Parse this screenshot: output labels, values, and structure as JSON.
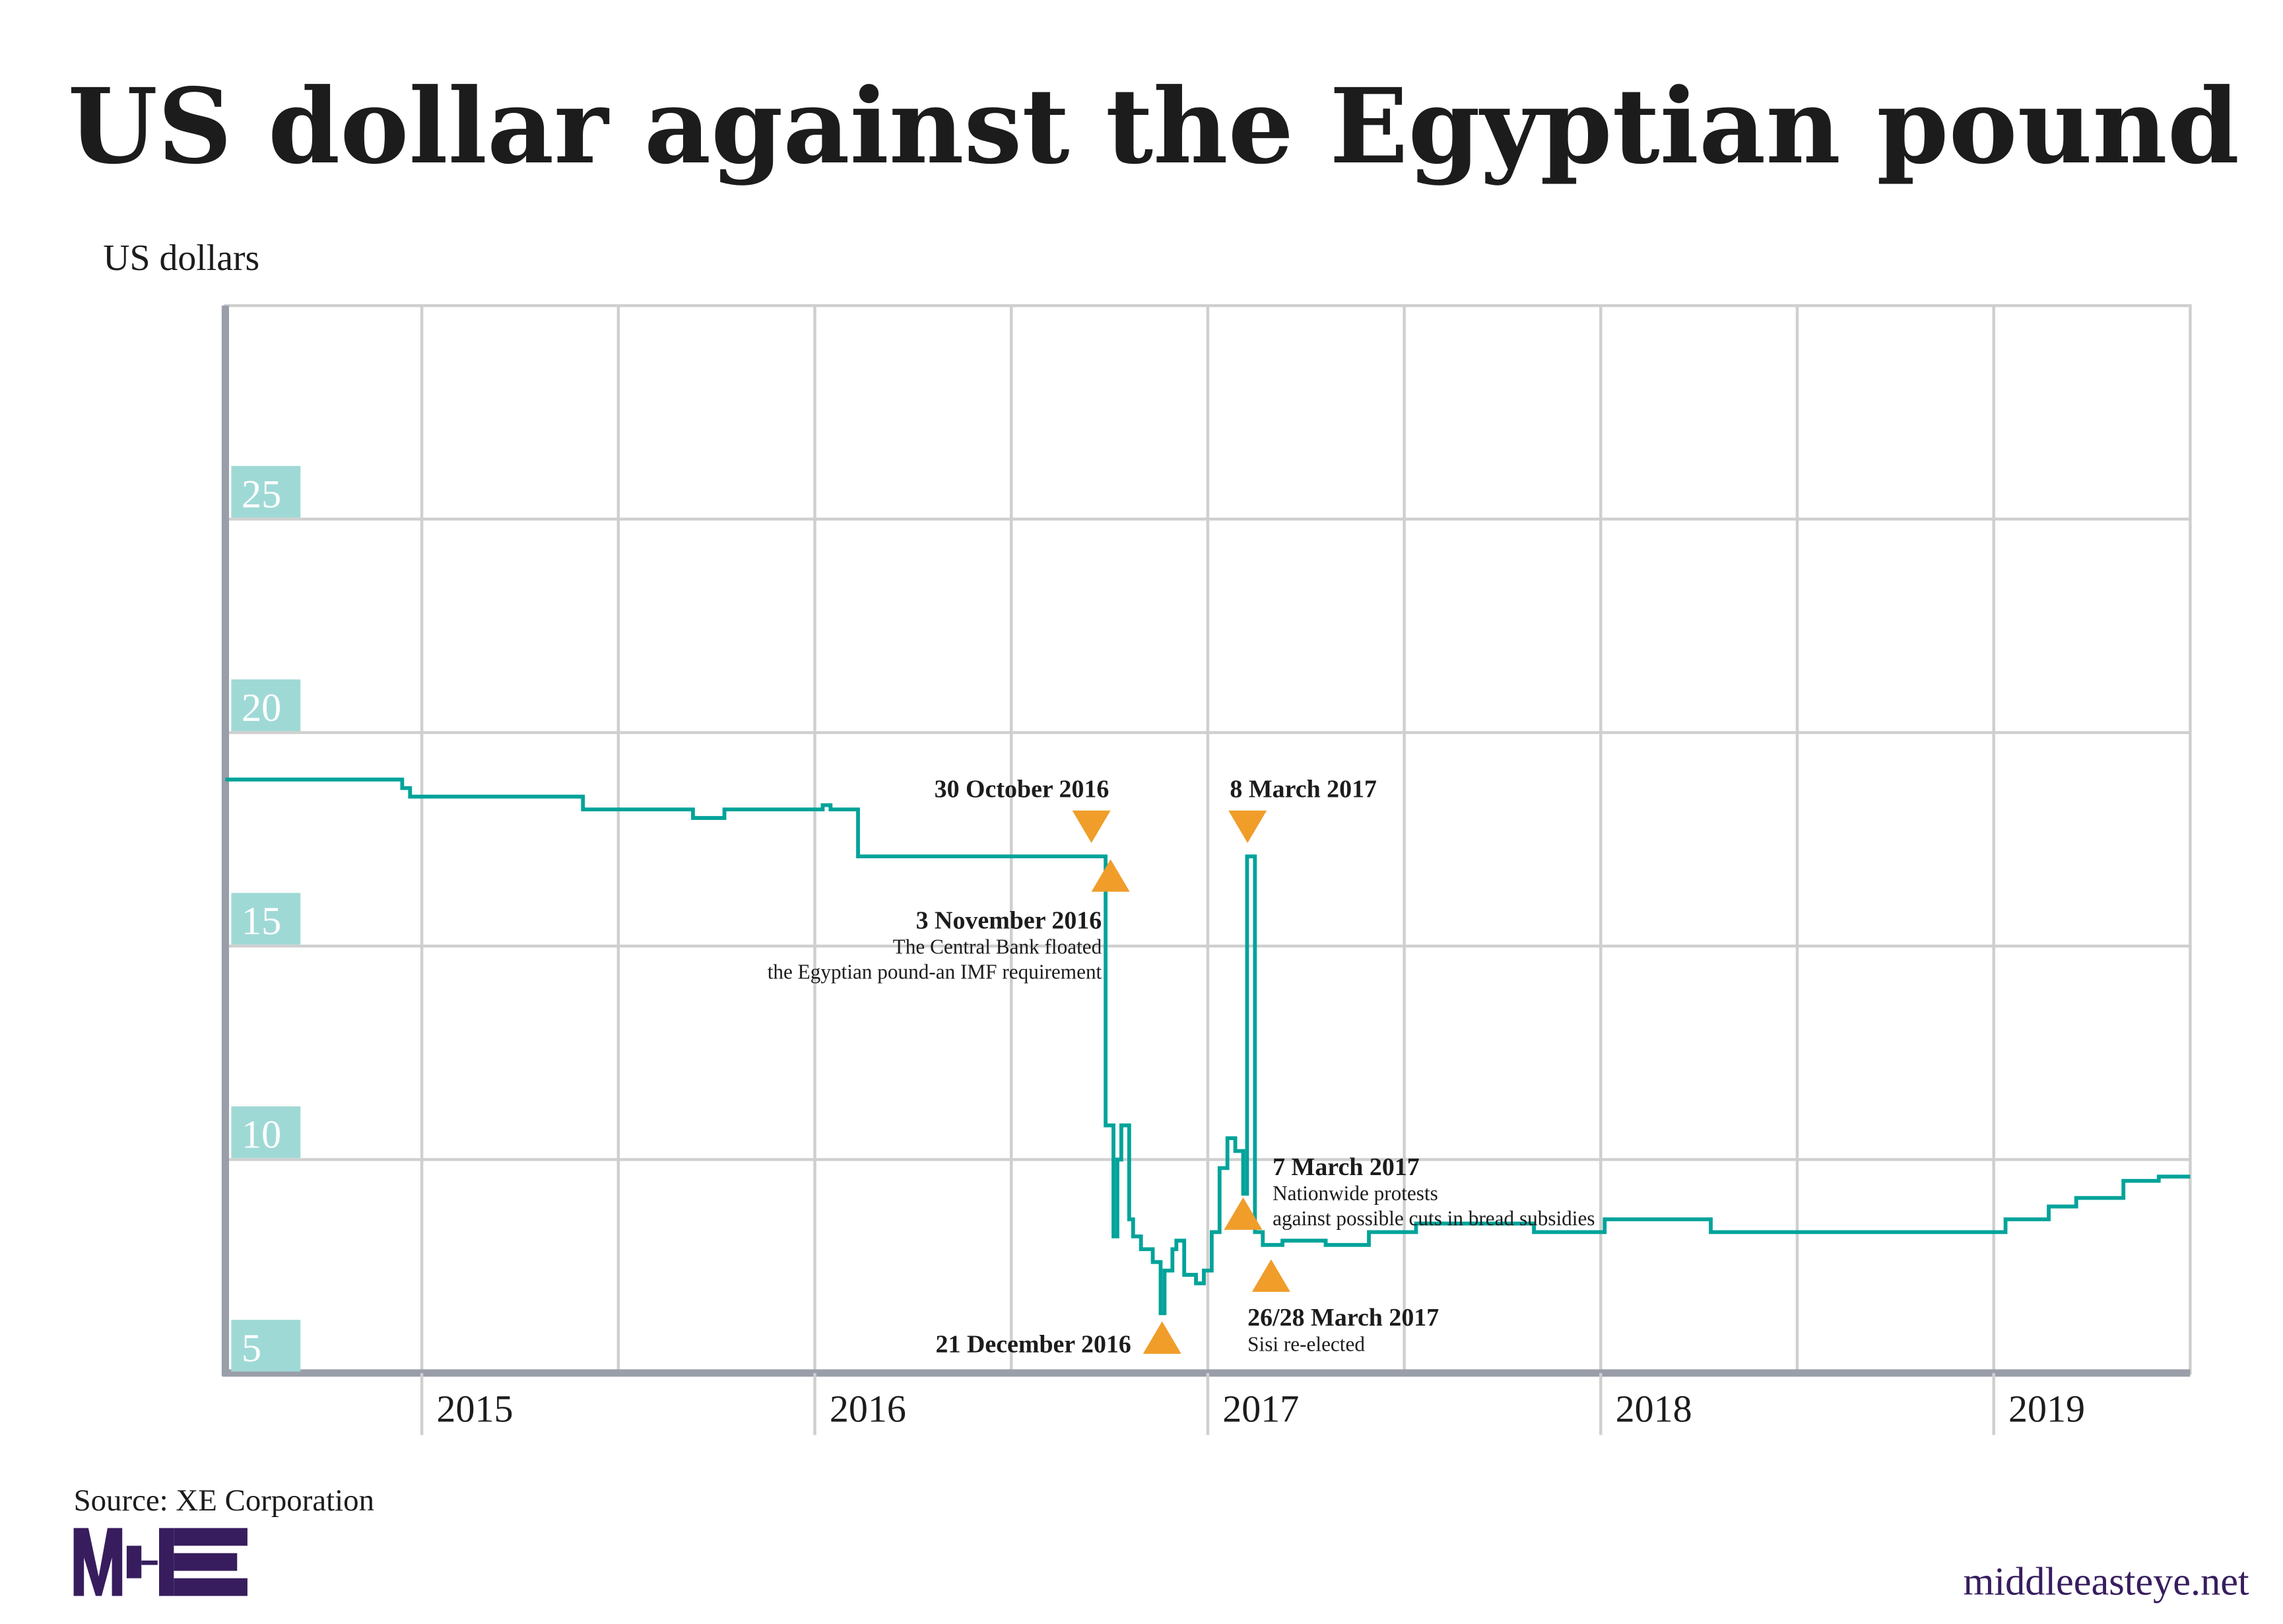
{
  "chart_data": {
    "type": "line",
    "title": "US dollar against the Egyptian pound",
    "ylabel": "US dollars",
    "xlabel": "",
    "source": "Source: XE Corporation",
    "xlim": [
      2014.5,
      2019.5
    ],
    "ylim": [
      5,
      30
    ],
    "y_ticks": [
      5,
      10,
      15,
      20,
      25
    ],
    "x_ticks": [
      2015,
      2016,
      2017,
      2018,
      2019
    ],
    "x_tick_labels": [
      "2015",
      "2016",
      "2017",
      "2018",
      "2019"
    ],
    "grid": true,
    "line_style": "step",
    "series": [
      {
        "color": "#00a39a",
        "x": [
          2014.5,
          2014.95,
          2014.97,
          2015.0,
          2015.41,
          2015.69,
          2015.77,
          2016.02,
          2016.04,
          2016.11,
          2016.74,
          2016.76,
          2016.77,
          2016.78,
          2016.8,
          2016.81,
          2016.83,
          2016.86,
          2016.88,
          2016.89,
          2016.91,
          2016.92,
          2016.94,
          2016.97,
          2016.99,
          2017.01,
          2017.03,
          2017.05,
          2017.07,
          2017.09,
          2017.1,
          2017.12,
          2017.14,
          2017.19,
          2017.3,
          2017.41,
          2017.53,
          2017.64,
          2017.83,
          2018.01,
          2018.16,
          2018.28,
          2018.61,
          2018.99,
          2019.03,
          2019.14,
          2019.21,
          2019.33,
          2019.42,
          2019.5
        ],
        "y": [
          18.9,
          18.7,
          18.5,
          18.5,
          18.2,
          18.0,
          18.2,
          18.3,
          18.2,
          17.1,
          10.8,
          8.2,
          10.0,
          10.8,
          8.6,
          8.2,
          7.9,
          7.6,
          6.4,
          7.4,
          7.9,
          8.1,
          7.3,
          7.1,
          7.4,
          8.3,
          9.8,
          10.5,
          10.2,
          9.2,
          17.1,
          8.3,
          8.0,
          8.1,
          8.0,
          8.3,
          8.5,
          8.5,
          8.3,
          8.6,
          8.6,
          8.3,
          8.3,
          8.3,
          8.6,
          8.9,
          9.1,
          9.5,
          9.6,
          9.6
        ]
      }
    ],
    "annotations": [
      {
        "title": "30 October 2016",
        "text": [],
        "marker": "down-triangle"
      },
      {
        "title": "3 November 2016",
        "text": [
          "The Central Bank floated",
          "the Egyptian pound-an IMF requirement"
        ],
        "marker": "up-triangle"
      },
      {
        "title": "21 December 2016",
        "text": [],
        "marker": "up-triangle"
      },
      {
        "title": "7 March 2017",
        "text": [
          "Nationwide protests",
          "against possible cuts in bread subsidies"
        ],
        "marker": "up-triangle"
      },
      {
        "title": "8 March 2017",
        "text": [],
        "marker": "down-triangle"
      },
      {
        "title": "26/28 March 2017",
        "text": [
          "Sisi re-elected"
        ],
        "marker": "up-triangle"
      }
    ],
    "colors": {
      "line": "#00a39a",
      "marker": "#f09d2a",
      "tick_box": "#9fd9d6",
      "grid": "#cfcfcf",
      "axis": "#9a9ea8",
      "brand": "#371d5e"
    }
  },
  "footer": {
    "site": "middleeasteye.net",
    "logo": "MEE"
  }
}
